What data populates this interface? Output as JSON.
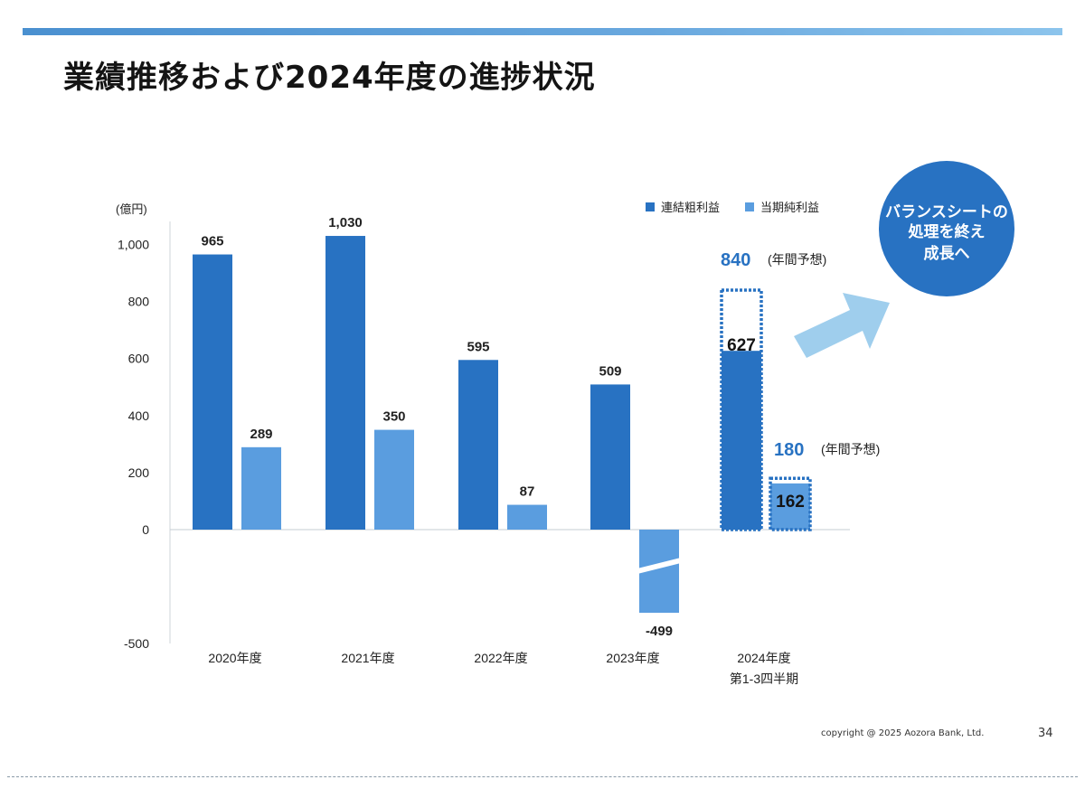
{
  "title": "業績推移および2024年度の進捗状況",
  "footer": {
    "copyright": "copyright @ 2025 Aozora Bank, Ltd.",
    "page_number": "34"
  },
  "callout": {
    "lines": [
      "バランスシートの",
      "処理を終え",
      "成長へ"
    ],
    "color": "#2872c2",
    "arrow_color": "#8ec6ea"
  },
  "colors": {
    "series_1": "#2872c2",
    "series_2": "#5a9ddf",
    "forecast_frame": "#2872c2",
    "forecast_label": "#2872c2"
  },
  "chart_data": {
    "type": "bar",
    "unit_label": "(億円)",
    "categories": [
      "2020年度",
      "2021年度",
      "2022年度",
      "2023年度",
      "2024年度"
    ],
    "category_sublabels": [
      "",
      "",
      "",
      "",
      "第1-3四半期"
    ],
    "series": [
      {
        "name": "連結粗利益",
        "values": [
          965,
          1030,
          595,
          509,
          627
        ],
        "labels": [
          "965",
          "1,030",
          "595",
          "509",
          "627"
        ]
      },
      {
        "name": "当期純利益",
        "values": [
          289,
          350,
          87,
          -499,
          162
        ],
        "labels": [
          "289",
          "350",
          "87",
          "-499",
          "162"
        ]
      }
    ],
    "forecast": [
      {
        "series": "連結粗利益",
        "value": 840,
        "label": "840",
        "note": "(年間予想)"
      },
      {
        "series": "当期純利益",
        "value": 180,
        "label": "180",
        "note": "(年間予想)"
      }
    ],
    "yticks": [
      "1,000",
      "800",
      "600",
      "400",
      "200",
      "0",
      "-500"
    ],
    "ytick_values": [
      1000,
      800,
      600,
      400,
      200,
      0,
      -500
    ],
    "ylim": [
      -500,
      1050
    ],
    "axis_break": "-499 bar shown with a broken (compressed) axis segment",
    "legend_position": "top-right",
    "grid": false
  }
}
